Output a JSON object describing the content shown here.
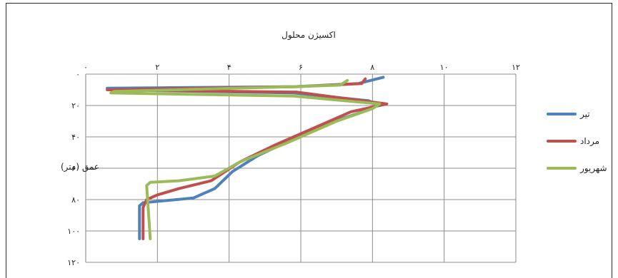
{
  "chart_data": {
    "type": "line",
    "title": "اکسیژن محلول",
    "xlabel": "",
    "ylabel": "عمق (متر)",
    "x_axis_position": "top",
    "y_axis_inverted": true,
    "xlim": [
      0,
      12
    ],
    "ylim": [
      0,
      120
    ],
    "x_ticks": [
      0,
      2,
      4,
      6,
      8,
      10,
      12
    ],
    "x_tick_labels": [
      "۰",
      "۲",
      "۴",
      "۶",
      "۸",
      "۱۰",
      "۱۲"
    ],
    "y_ticks": [
      0,
      20,
      40,
      60,
      80,
      100,
      120
    ],
    "y_tick_labels": [
      "۰",
      "۲۰",
      "۴۰",
      "۶۰",
      "۸۰",
      "۱۰۰",
      "۱۲۰"
    ],
    "grid": true,
    "legend_position": "right",
    "series": [
      {
        "name": "تیر",
        "color": "#4F81BD",
        "points": [
          [
            8.3,
            2
          ],
          [
            7.6,
            6
          ],
          [
            5.8,
            8
          ],
          [
            0.6,
            9
          ],
          [
            0.7,
            10
          ],
          [
            5.8,
            12
          ],
          [
            7.9,
            17
          ],
          [
            8.1,
            19
          ],
          [
            8.0,
            22
          ],
          [
            7.2,
            28
          ],
          [
            6.1,
            38
          ],
          [
            4.8,
            52
          ],
          [
            4.1,
            62
          ],
          [
            3.6,
            73
          ],
          [
            3.0,
            79
          ],
          [
            1.6,
            82
          ],
          [
            1.5,
            84
          ],
          [
            1.5,
            87
          ],
          [
            1.5,
            105
          ]
        ]
      },
      {
        "name": "مرداد",
        "color": "#C0504D",
        "points": [
          [
            7.8,
            3
          ],
          [
            7.7,
            6
          ],
          [
            5.9,
            8
          ],
          [
            0.6,
            10
          ],
          [
            5.9,
            11.5
          ],
          [
            8.4,
            19
          ],
          [
            7.4,
            24
          ],
          [
            6.4,
            34
          ],
          [
            5.3,
            45
          ],
          [
            4.3,
            56
          ],
          [
            3.5,
            68
          ],
          [
            2.6,
            73
          ],
          [
            2.0,
            77
          ],
          [
            1.7,
            80
          ],
          [
            1.6,
            85
          ],
          [
            1.6,
            105
          ]
        ]
      },
      {
        "name": "شهریور",
        "color": "#9BBB59",
        "points": [
          [
            7.3,
            4
          ],
          [
            7.1,
            7
          ],
          [
            5.8,
            8
          ],
          [
            0.8,
            11
          ],
          [
            0.7,
            12
          ],
          [
            5.8,
            14
          ],
          [
            8.2,
            19
          ],
          [
            8.0,
            22
          ],
          [
            7.0,
            30
          ],
          [
            5.6,
            44
          ],
          [
            4.3,
            56
          ],
          [
            3.6,
            65
          ],
          [
            2.6,
            68
          ],
          [
            1.8,
            69
          ],
          [
            1.7,
            71
          ],
          [
            1.8,
            105
          ]
        ]
      }
    ]
  }
}
